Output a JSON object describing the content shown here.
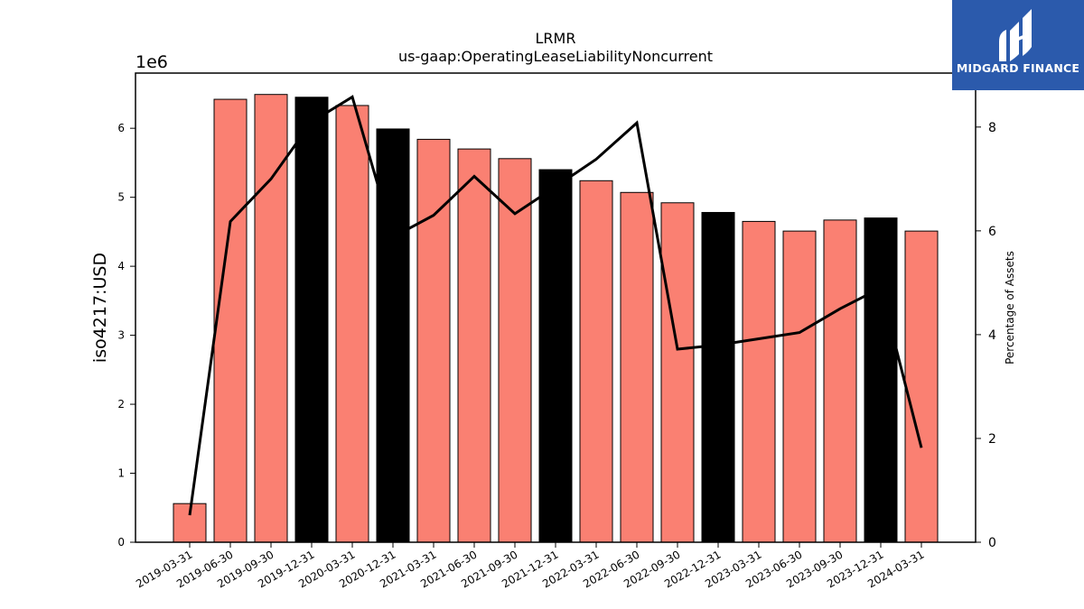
{
  "brand": {
    "name": "MIDGARD FINANCE",
    "bg_color": "#2b5aac"
  },
  "chart_data": {
    "type": "bar",
    "title": "LRMR",
    "subtitle": "us-gaap:OperatingLeaseLiabilityNoncurrent",
    "ylabel": "iso4217:USD",
    "y2label": "Percentage of Assets",
    "y_offset_label": "1e6",
    "ylim": [
      0,
      6800000
    ],
    "y2lim": [
      0,
      9.04
    ],
    "yticks": [
      0,
      1,
      2,
      3,
      4,
      5,
      6
    ],
    "y2ticks": [
      0,
      2,
      4,
      6,
      8
    ],
    "categories": [
      "2019-03-31",
      "2019-06-30",
      "2019-09-30",
      "2019-12-31",
      "2020-03-31",
      "2020-12-31",
      "2021-03-31",
      "2021-06-30",
      "2021-09-30",
      "2021-12-31",
      "2022-03-31",
      "2022-06-30",
      "2022-09-30",
      "2022-12-31",
      "2023-03-31",
      "2023-06-30",
      "2023-09-30",
      "2023-12-31",
      "2024-03-31"
    ],
    "series": [
      {
        "type": "bar",
        "axis": "left",
        "values": [
          560000,
          6420000,
          6490000,
          6450000,
          6330000,
          5990000,
          5840000,
          5700000,
          5560000,
          5400000,
          5240000,
          5070000,
          4920000,
          4780000,
          4650000,
          4510000,
          4670000,
          4700000,
          4510000
        ],
        "colors": [
          "#fa8072",
          "#fa8072",
          "#fa8072",
          "#000000",
          "#fa8072",
          "#000000",
          "#fa8072",
          "#fa8072",
          "#fa8072",
          "#000000",
          "#fa8072",
          "#fa8072",
          "#fa8072",
          "#000000",
          "#fa8072",
          "#fa8072",
          "#fa8072",
          "#000000",
          "#fa8072"
        ]
      },
      {
        "type": "line",
        "axis": "right",
        "color": "#000000",
        "values": [
          0.52,
          6.18,
          7.0,
          8.1,
          8.58,
          5.88,
          6.3,
          7.05,
          6.33,
          6.85,
          7.38,
          8.08,
          3.72,
          3.8,
          3.92,
          4.04,
          4.5,
          4.9,
          1.82
        ]
      }
    ],
    "grid": false,
    "legend": "none"
  }
}
